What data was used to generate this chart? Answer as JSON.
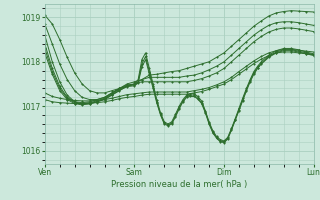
{
  "xlabel": "Pression niveau de la mer( hPa )",
  "ylim": [
    1015.7,
    1019.3
  ],
  "yticks": [
    1016,
    1017,
    1018,
    1019
  ],
  "xlim": [
    0,
    72
  ],
  "xtick_positions": [
    0,
    24,
    48,
    72
  ],
  "xtick_labels": [
    "Ven",
    "Sam",
    "Dim",
    "Lun"
  ],
  "bg_color": "#cce8dc",
  "grid_color": "#aad0c0",
  "line_color": "#2d6e2d",
  "marker": "P",
  "marker_size": 1.8,
  "linewidth": 0.7,
  "series": [
    [
      0,
      1019.05,
      2,
      1018.85,
      4,
      1018.5,
      6,
      1018.1,
      8,
      1017.75,
      10,
      1017.5,
      12,
      1017.35,
      14,
      1017.3,
      16,
      1017.3,
      18,
      1017.35,
      20,
      1017.4,
      22,
      1017.45,
      24,
      1017.5,
      26,
      1017.6,
      28,
      1017.7,
      30,
      1017.72,
      32,
      1017.75,
      34,
      1017.78,
      36,
      1017.8,
      38,
      1017.85,
      40,
      1017.9,
      42,
      1017.95,
      44,
      1018.0,
      46,
      1018.1,
      48,
      1018.2,
      50,
      1018.35,
      52,
      1018.5,
      54,
      1018.65,
      56,
      1018.8,
      58,
      1018.92,
      60,
      1019.03,
      62,
      1019.1,
      64,
      1019.13,
      66,
      1019.15,
      68,
      1019.14,
      70,
      1019.13,
      72,
      1019.12
    ],
    [
      0,
      1018.85,
      2,
      1018.4,
      4,
      1017.95,
      6,
      1017.6,
      8,
      1017.35,
      10,
      1017.2,
      12,
      1017.15,
      14,
      1017.15,
      16,
      1017.2,
      18,
      1017.3,
      20,
      1017.4,
      22,
      1017.5,
      24,
      1017.55,
      26,
      1017.6,
      28,
      1017.65,
      30,
      1017.65,
      32,
      1017.65,
      34,
      1017.65,
      36,
      1017.65,
      38,
      1017.68,
      40,
      1017.7,
      42,
      1017.75,
      44,
      1017.82,
      46,
      1017.9,
      48,
      1018.0,
      50,
      1018.15,
      52,
      1018.3,
      54,
      1018.45,
      56,
      1018.6,
      58,
      1018.72,
      60,
      1018.82,
      62,
      1018.88,
      64,
      1018.9,
      66,
      1018.9,
      68,
      1018.88,
      70,
      1018.85,
      72,
      1018.82
    ],
    [
      0,
      1018.6,
      2,
      1018.0,
      4,
      1017.55,
      6,
      1017.25,
      8,
      1017.1,
      10,
      1017.05,
      12,
      1017.05,
      14,
      1017.1,
      16,
      1017.15,
      18,
      1017.25,
      20,
      1017.35,
      22,
      1017.45,
      24,
      1017.5,
      26,
      1017.55,
      28,
      1017.55,
      30,
      1017.55,
      32,
      1017.55,
      34,
      1017.55,
      36,
      1017.55,
      38,
      1017.55,
      40,
      1017.58,
      42,
      1017.62,
      44,
      1017.68,
      46,
      1017.75,
      48,
      1017.85,
      50,
      1018.0,
      52,
      1018.15,
      54,
      1018.3,
      56,
      1018.45,
      58,
      1018.57,
      60,
      1018.67,
      62,
      1018.73,
      64,
      1018.76,
      66,
      1018.76,
      68,
      1018.74,
      70,
      1018.71,
      72,
      1018.68
    ],
    [
      0,
      1018.4,
      2,
      1017.85,
      4,
      1017.45,
      6,
      1017.2,
      8,
      1017.1,
      10,
      1017.08,
      12,
      1017.1,
      14,
      1017.15,
      16,
      1017.2,
      18,
      1017.3,
      20,
      1017.4,
      22,
      1017.48,
      24,
      1017.5,
      25,
      1017.6,
      26,
      1018.05,
      27,
      1018.2,
      28,
      1017.85,
      29,
      1017.5,
      30,
      1017.15,
      31,
      1016.85,
      32,
      1016.65,
      33,
      1016.6,
      34,
      1016.65,
      35,
      1016.82,
      36,
      1017.0,
      37,
      1017.15,
      38,
      1017.25,
      39,
      1017.28,
      40,
      1017.28,
      41,
      1017.22,
      42,
      1017.12,
      43,
      1016.9,
      44,
      1016.65,
      45,
      1016.45,
      46,
      1016.32,
      47,
      1016.25,
      48,
      1016.22,
      49,
      1016.3,
      50,
      1016.5,
      51,
      1016.72,
      52,
      1016.95,
      53,
      1017.18,
      54,
      1017.4,
      55,
      1017.6,
      56,
      1017.78,
      57,
      1017.9,
      58,
      1018.0,
      60,
      1018.15,
      62,
      1018.25,
      64,
      1018.3,
      66,
      1018.3,
      68,
      1018.27,
      70,
      1018.22,
      72,
      1018.18
    ],
    [
      0,
      1018.3,
      2,
      1017.78,
      4,
      1017.4,
      6,
      1017.18,
      8,
      1017.08,
      10,
      1017.05,
      12,
      1017.08,
      14,
      1017.12,
      16,
      1017.18,
      18,
      1017.28,
      20,
      1017.38,
      22,
      1017.46,
      24,
      1017.48,
      25,
      1017.55,
      26,
      1017.95,
      27,
      1018.12,
      28,
      1017.78,
      29,
      1017.45,
      30,
      1017.1,
      31,
      1016.82,
      32,
      1016.62,
      33,
      1016.58,
      34,
      1016.62,
      35,
      1016.78,
      36,
      1016.97,
      37,
      1017.12,
      38,
      1017.22,
      39,
      1017.25,
      40,
      1017.25,
      41,
      1017.18,
      42,
      1017.08,
      43,
      1016.88,
      44,
      1016.62,
      45,
      1016.42,
      46,
      1016.3,
      47,
      1016.22,
      48,
      1016.2,
      49,
      1016.28,
      50,
      1016.48,
      51,
      1016.7,
      52,
      1016.92,
      53,
      1017.15,
      54,
      1017.37,
      55,
      1017.57,
      56,
      1017.75,
      57,
      1017.87,
      58,
      1017.97,
      60,
      1018.12,
      62,
      1018.22,
      64,
      1018.27,
      66,
      1018.27,
      68,
      1018.24,
      70,
      1018.2,
      72,
      1018.16
    ],
    [
      0,
      1018.2,
      2,
      1017.72,
      4,
      1017.35,
      6,
      1017.15,
      8,
      1017.06,
      10,
      1017.03,
      12,
      1017.06,
      14,
      1017.1,
      16,
      1017.16,
      18,
      1017.26,
      20,
      1017.36,
      22,
      1017.44,
      24,
      1017.46,
      25,
      1017.52,
      26,
      1017.88,
      27,
      1018.05,
      28,
      1017.72,
      29,
      1017.4,
      30,
      1017.07,
      31,
      1016.8,
      32,
      1016.6,
      33,
      1016.56,
      34,
      1016.6,
      35,
      1016.76,
      36,
      1016.94,
      37,
      1017.1,
      38,
      1017.2,
      39,
      1017.22,
      40,
      1017.22,
      41,
      1017.16,
      42,
      1017.06,
      43,
      1016.85,
      44,
      1016.6,
      45,
      1016.4,
      46,
      1016.28,
      47,
      1016.2,
      48,
      1016.18,
      49,
      1016.26,
      50,
      1016.46,
      51,
      1016.68,
      52,
      1016.9,
      53,
      1017.12,
      54,
      1017.34,
      55,
      1017.55,
      56,
      1017.72,
      57,
      1017.85,
      58,
      1017.95,
      60,
      1018.1,
      62,
      1018.2,
      64,
      1018.25,
      66,
      1018.25,
      68,
      1018.22,
      70,
      1018.18,
      72,
      1018.14
    ],
    [
      0,
      1017.3,
      2,
      1017.22,
      4,
      1017.18,
      6,
      1017.15,
      8,
      1017.13,
      10,
      1017.12,
      12,
      1017.12,
      14,
      1017.13,
      16,
      1017.15,
      18,
      1017.18,
      20,
      1017.22,
      22,
      1017.26,
      24,
      1017.28,
      26,
      1017.3,
      28,
      1017.32,
      30,
      1017.32,
      32,
      1017.32,
      34,
      1017.32,
      36,
      1017.32,
      38,
      1017.32,
      40,
      1017.35,
      42,
      1017.38,
      44,
      1017.42,
      46,
      1017.48,
      48,
      1017.55,
      50,
      1017.65,
      52,
      1017.78,
      54,
      1017.9,
      56,
      1018.02,
      58,
      1018.12,
      60,
      1018.2,
      62,
      1018.25,
      64,
      1018.28,
      66,
      1018.28,
      68,
      1018.26,
      70,
      1018.24,
      72,
      1018.22
    ],
    [
      0,
      1017.15,
      2,
      1017.1,
      4,
      1017.08,
      6,
      1017.07,
      8,
      1017.06,
      10,
      1017.06,
      12,
      1017.07,
      14,
      1017.08,
      16,
      1017.1,
      18,
      1017.13,
      20,
      1017.17,
      22,
      1017.2,
      24,
      1017.22,
      26,
      1017.25,
      28,
      1017.27,
      30,
      1017.27,
      32,
      1017.27,
      34,
      1017.27,
      36,
      1017.27,
      38,
      1017.27,
      40,
      1017.3,
      42,
      1017.33,
      44,
      1017.38,
      46,
      1017.44,
      48,
      1017.5,
      50,
      1017.6,
      52,
      1017.72,
      54,
      1017.84,
      56,
      1017.96,
      58,
      1018.06,
      60,
      1018.14,
      62,
      1018.2,
      64,
      1018.22,
      66,
      1018.22,
      68,
      1018.2,
      70,
      1018.18,
      72,
      1018.16
    ]
  ]
}
